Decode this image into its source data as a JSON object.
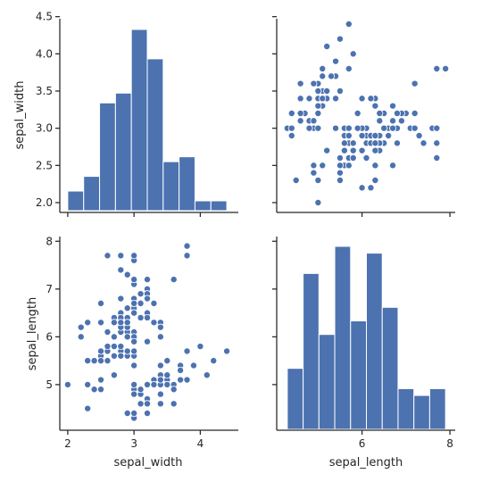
{
  "chart_data": {
    "type": "pairplot",
    "variables": [
      "sepal_width",
      "sepal_length"
    ],
    "color": "#4c72b0",
    "grid": false,
    "axis_labels": {
      "x": [
        "sepal_width",
        "sepal_length"
      ],
      "y": [
        "sepal_width",
        "sepal_length"
      ]
    },
    "ticks": {
      "sepal_width": [
        2.0,
        2.5,
        3.0,
        3.5,
        4.0,
        4.5
      ],
      "sepal_width_bottom": [
        2,
        3,
        4
      ],
      "sepal_length": [
        5,
        6,
        7,
        8
      ],
      "sepal_length_bottom": [
        6,
        8
      ]
    },
    "tick_labels": {
      "sepal_width": [
        "2.0",
        "2.5",
        "3.0",
        "3.5",
        "4.0",
        "4.5"
      ],
      "sepal_width_bottom": [
        "2",
        "3",
        "4"
      ],
      "sepal_length": [
        "5",
        "6",
        "7",
        "8"
      ],
      "sepal_length_bottom": [
        "6",
        "8"
      ]
    },
    "ranges": {
      "sepal_width": [
        1.88,
        4.52
      ],
      "sepal_length": [
        4.12,
        8.08
      ]
    },
    "hist_sepal_width": {
      "type": "bar",
      "bins": [
        2.0,
        2.24,
        2.48,
        2.72,
        2.96,
        3.2,
        3.44,
        3.68,
        3.92,
        4.16,
        4.4
      ],
      "counts": [
        4,
        7,
        22,
        24,
        37,
        31,
        10,
        11,
        2,
        2
      ]
    },
    "hist_sepal_length": {
      "type": "bar",
      "bins": [
        4.3,
        4.66,
        5.02,
        5.38,
        5.74,
        6.1,
        6.46,
        6.82,
        7.18,
        7.54,
        7.9
      ],
      "counts": [
        9,
        23,
        14,
        27,
        16,
        26,
        18,
        6,
        5,
        6
      ]
    },
    "scatter": {
      "type": "scatter",
      "x_variable": "sepal_length",
      "y_variable": "sepal_width",
      "points": [
        [
          5.1,
          3.5
        ],
        [
          4.9,
          3.0
        ],
        [
          4.7,
          3.2
        ],
        [
          4.6,
          3.1
        ],
        [
          5.0,
          3.6
        ],
        [
          5.4,
          3.9
        ],
        [
          4.6,
          3.4
        ],
        [
          5.0,
          3.4
        ],
        [
          4.4,
          2.9
        ],
        [
          4.9,
          3.1
        ],
        [
          5.4,
          3.7
        ],
        [
          4.8,
          3.4
        ],
        [
          4.8,
          3.0
        ],
        [
          4.3,
          3.0
        ],
        [
          5.8,
          4.0
        ],
        [
          5.7,
          4.4
        ],
        [
          5.4,
          3.9
        ],
        [
          5.1,
          3.5
        ],
        [
          5.7,
          3.8
        ],
        [
          5.1,
          3.8
        ],
        [
          5.4,
          3.4
        ],
        [
          5.1,
          3.7
        ],
        [
          4.6,
          3.6
        ],
        [
          5.1,
          3.3
        ],
        [
          4.8,
          3.4
        ],
        [
          5.0,
          3.0
        ],
        [
          5.0,
          3.4
        ],
        [
          5.2,
          3.5
        ],
        [
          5.2,
          3.4
        ],
        [
          4.7,
          3.2
        ],
        [
          4.8,
          3.1
        ],
        [
          5.4,
          3.4
        ],
        [
          5.2,
          4.1
        ],
        [
          5.5,
          4.2
        ],
        [
          4.9,
          3.1
        ],
        [
          5.0,
          3.2
        ],
        [
          5.5,
          3.5
        ],
        [
          4.9,
          3.6
        ],
        [
          4.4,
          3.0
        ],
        [
          5.1,
          3.4
        ],
        [
          5.0,
          3.5
        ],
        [
          4.5,
          2.3
        ],
        [
          4.4,
          3.2
        ],
        [
          5.0,
          3.5
        ],
        [
          5.1,
          3.8
        ],
        [
          4.8,
          3.0
        ],
        [
          5.1,
          3.8
        ],
        [
          4.6,
          3.2
        ],
        [
          5.3,
          3.7
        ],
        [
          5.0,
          3.3
        ],
        [
          7.0,
          3.2
        ],
        [
          6.4,
          3.2
        ],
        [
          6.9,
          3.1
        ],
        [
          5.5,
          2.3
        ],
        [
          6.5,
          2.8
        ],
        [
          5.7,
          2.8
        ],
        [
          6.3,
          3.3
        ],
        [
          4.9,
          2.4
        ],
        [
          6.6,
          2.9
        ],
        [
          5.2,
          2.7
        ],
        [
          5.0,
          2.0
        ],
        [
          5.9,
          3.0
        ],
        [
          6.0,
          2.2
        ],
        [
          6.1,
          2.9
        ],
        [
          5.6,
          2.9
        ],
        [
          6.7,
          3.1
        ],
        [
          5.6,
          3.0
        ],
        [
          5.8,
          2.7
        ],
        [
          6.2,
          2.2
        ],
        [
          5.6,
          2.5
        ],
        [
          5.9,
          3.2
        ],
        [
          6.1,
          2.8
        ],
        [
          6.3,
          2.5
        ],
        [
          6.1,
          2.8
        ],
        [
          6.4,
          2.9
        ],
        [
          6.6,
          3.0
        ],
        [
          6.8,
          2.8
        ],
        [
          6.7,
          3.0
        ],
        [
          6.0,
          2.9
        ],
        [
          5.7,
          2.6
        ],
        [
          5.5,
          2.4
        ],
        [
          5.5,
          2.4
        ],
        [
          5.8,
          2.7
        ],
        [
          6.0,
          2.7
        ],
        [
          5.4,
          3.0
        ],
        [
          6.0,
          3.4
        ],
        [
          6.7,
          3.1
        ],
        [
          6.3,
          2.3
        ],
        [
          5.6,
          3.0
        ],
        [
          5.5,
          2.5
        ],
        [
          5.5,
          2.6
        ],
        [
          6.1,
          3.0
        ],
        [
          5.8,
          2.6
        ],
        [
          5.0,
          2.3
        ],
        [
          5.6,
          2.7
        ],
        [
          5.7,
          3.0
        ],
        [
          5.7,
          2.9
        ],
        [
          6.2,
          2.9
        ],
        [
          5.1,
          2.5
        ],
        [
          5.7,
          2.8
        ],
        [
          6.3,
          3.3
        ],
        [
          5.8,
          2.7
        ],
        [
          7.1,
          3.0
        ],
        [
          6.3,
          2.9
        ],
        [
          6.5,
          3.0
        ],
        [
          7.6,
          3.0
        ],
        [
          4.9,
          2.5
        ],
        [
          7.3,
          2.9
        ],
        [
          6.7,
          2.5
        ],
        [
          7.2,
          3.6
        ],
        [
          6.5,
          3.2
        ],
        [
          6.4,
          2.7
        ],
        [
          6.8,
          3.0
        ],
        [
          5.7,
          2.5
        ],
        [
          5.8,
          2.8
        ],
        [
          6.4,
          3.2
        ],
        [
          6.5,
          3.0
        ],
        [
          7.7,
          3.8
        ],
        [
          7.7,
          2.6
        ],
        [
          6.0,
          2.2
        ],
        [
          6.9,
          3.2
        ],
        [
          5.6,
          2.8
        ],
        [
          7.7,
          2.8
        ],
        [
          6.3,
          2.7
        ],
        [
          6.7,
          3.3
        ],
        [
          7.2,
          3.2
        ],
        [
          6.2,
          2.8
        ],
        [
          6.1,
          3.0
        ],
        [
          6.4,
          2.8
        ],
        [
          7.2,
          3.0
        ],
        [
          7.4,
          2.8
        ],
        [
          7.9,
          3.8
        ],
        [
          6.4,
          2.8
        ],
        [
          6.3,
          2.8
        ],
        [
          6.1,
          2.6
        ],
        [
          7.7,
          3.0
        ],
        [
          6.3,
          3.4
        ],
        [
          6.4,
          3.1
        ],
        [
          6.0,
          3.0
        ],
        [
          6.9,
          3.1
        ],
        [
          6.7,
          3.1
        ],
        [
          6.9,
          3.1
        ],
        [
          5.8,
          2.7
        ],
        [
          6.8,
          3.2
        ],
        [
          6.7,
          3.3
        ],
        [
          6.7,
          3.0
        ],
        [
          6.3,
          2.5
        ],
        [
          6.5,
          3.0
        ],
        [
          6.2,
          3.4
        ],
        [
          5.9,
          3.0
        ]
      ]
    }
  }
}
